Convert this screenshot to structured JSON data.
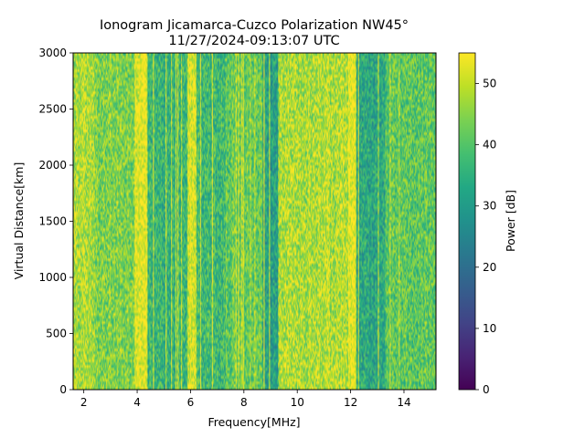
{
  "chart_data": {
    "type": "heatmap",
    "title": "Ionogram Jicamarca-Cuzco Polarization NW45°",
    "subtitle": "11/27/2024-09:13:07 UTC",
    "xlabel": "Frequency[MHz]",
    "ylabel": "Virtual Distance[km]",
    "colorbar_label": "Power [dB]",
    "colormap": "viridis",
    "xlim": [
      1.6,
      15.2
    ],
    "ylim": [
      0,
      3000
    ],
    "clim": [
      0,
      55
    ],
    "x_ticks": [
      2,
      4,
      6,
      8,
      10,
      12,
      14
    ],
    "y_ticks": [
      0,
      500,
      1000,
      1500,
      2000,
      2500,
      3000
    ],
    "colorbar_ticks": [
      0,
      10,
      20,
      30,
      40,
      50
    ],
    "grid": false,
    "power_profile_vs_frequency": [
      {
        "start_mhz": 1.6,
        "end_mhz": 2.4,
        "mean_db": 48
      },
      {
        "start_mhz": 2.4,
        "end_mhz": 3.9,
        "mean_db": 44
      },
      {
        "start_mhz": 3.9,
        "end_mhz": 4.4,
        "mean_db": 54
      },
      {
        "start_mhz": 4.4,
        "end_mhz": 5.9,
        "mean_db": 36
      },
      {
        "start_mhz": 5.9,
        "end_mhz": 6.2,
        "mean_db": 53
      },
      {
        "start_mhz": 6.2,
        "end_mhz": 7.3,
        "mean_db": 37
      },
      {
        "start_mhz": 7.3,
        "end_mhz": 8.7,
        "mean_db": 42
      },
      {
        "start_mhz": 8.7,
        "end_mhz": 9.3,
        "mean_db": 31
      },
      {
        "start_mhz": 9.3,
        "end_mhz": 11.9,
        "mean_db": 48
      },
      {
        "start_mhz": 11.9,
        "end_mhz": 12.2,
        "mean_db": 54
      },
      {
        "start_mhz": 12.2,
        "end_mhz": 13.3,
        "mean_db": 33
      },
      {
        "start_mhz": 13.3,
        "end_mhz": 15.2,
        "mean_db": 41
      }
    ]
  }
}
